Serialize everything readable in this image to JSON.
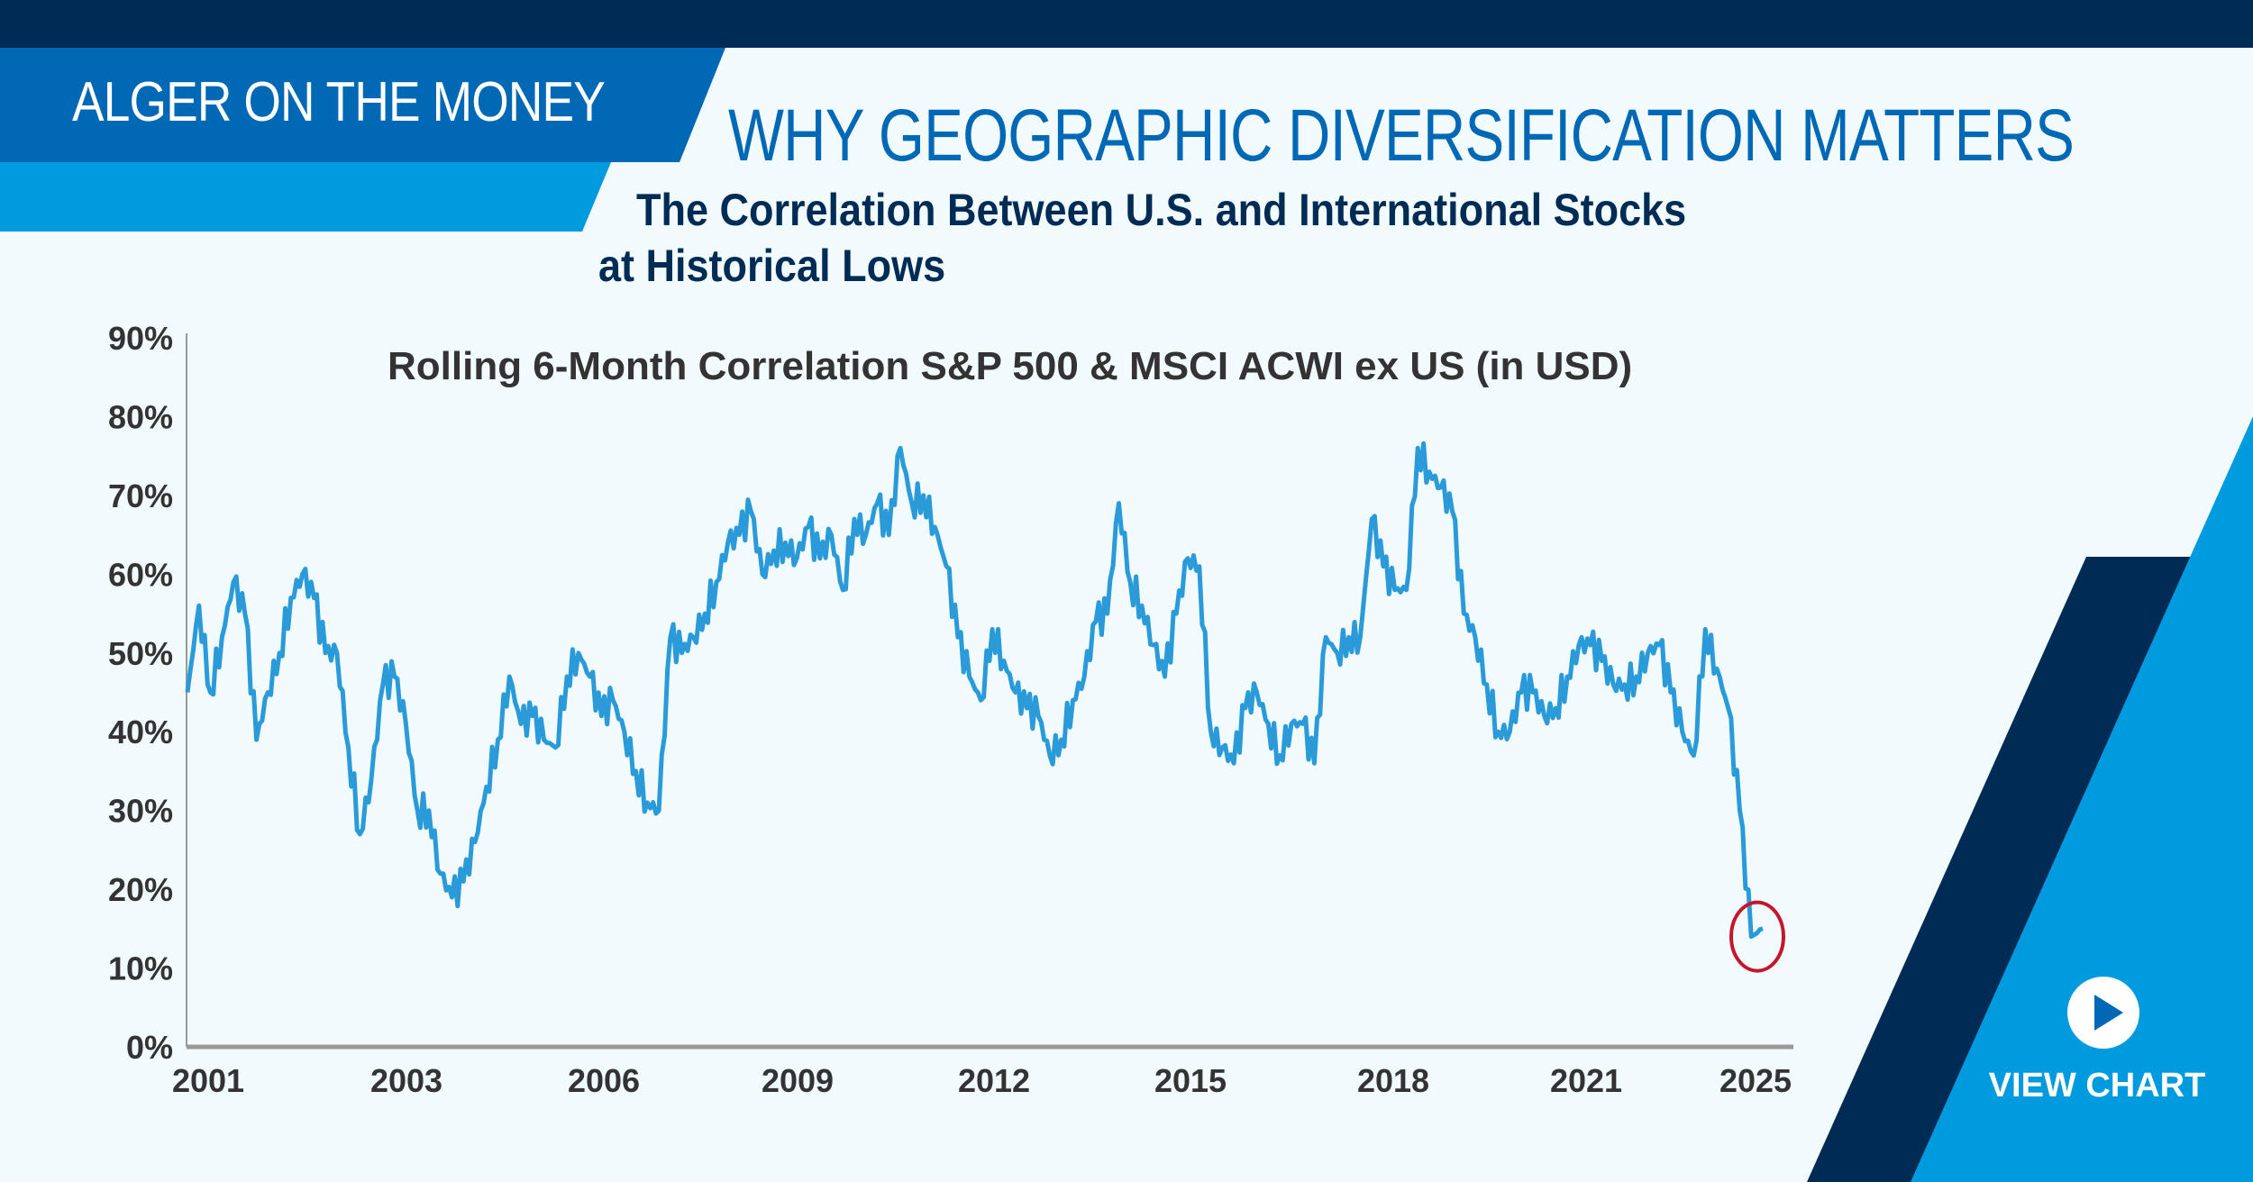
{
  "header": {
    "brand": "ALGER ON THE MONEY",
    "title": "WHY GEOGRAPHIC DIVERSIFICATION MATTERS",
    "subtitle_line1": "The Correlation Between U.S. and International Stocks",
    "subtitle_line2": "at Historical Lows"
  },
  "cta": {
    "label": "VIEW CHART",
    "icon": "play-icon"
  },
  "colors": {
    "navy": "#002b55",
    "blue": "#0068b4",
    "light_blue": "#009ade",
    "line": "#2b9ad8",
    "highlight": "#c4172c",
    "background": "#f1fafd"
  },
  "chart_data": {
    "type": "line",
    "title": "Rolling 6-Month Correlation S&P 500 & MSCI ACWI ex US (in USD)",
    "xlabel": "",
    "ylabel": "",
    "x_tick_labels": [
      "2001",
      "2003",
      "2006",
      "2009",
      "2012",
      "2015",
      "2018",
      "2021",
      "2025"
    ],
    "y_tick_labels": [
      "0%",
      "10%",
      "20%",
      "30%",
      "40%",
      "50%",
      "60%",
      "70%",
      "80%",
      "90%"
    ],
    "ylim": [
      0,
      90
    ],
    "x_range": [
      "2001",
      "2025"
    ],
    "grid": false,
    "annotation": "circle around latest values (~12-16%)",
    "series": [
      {
        "values": [
          45,
          56,
          45,
          52,
          59,
          55,
          39,
          45,
          50,
          57,
          60,
          57,
          50,
          50,
          38,
          27,
          34,
          46,
          47,
          41,
          30,
          30,
          22,
          19,
          21,
          26,
          33,
          39,
          47,
          41,
          42,
          39,
          38,
          47,
          50,
          47,
          42,
          44,
          40,
          35,
          31,
          30,
          52,
          50,
          52,
          55,
          59,
          64,
          65,
          68,
          60,
          63,
          64,
          62,
          66,
          62,
          65,
          58,
          67,
          65,
          69,
          65,
          76,
          69,
          70,
          66,
          61,
          52,
          47,
          44,
          53,
          49,
          45,
          43,
          42,
          37,
          39,
          44,
          47,
          54,
          55,
          69,
          59,
          56,
          51,
          47,
          55,
          62,
          61,
          40,
          38,
          36,
          43,
          45,
          41,
          37,
          41,
          41,
          36,
          52,
          50,
          52,
          52,
          67,
          61,
          58,
          58,
          76,
          73,
          71,
          68,
          55,
          52,
          46,
          40,
          40,
          45,
          45,
          42,
          43,
          47,
          51,
          51,
          49,
          46,
          46,
          47,
          50,
          51,
          45,
          40,
          37,
          53,
          48,
          43,
          30,
          14,
          15
        ]
      }
    ]
  }
}
